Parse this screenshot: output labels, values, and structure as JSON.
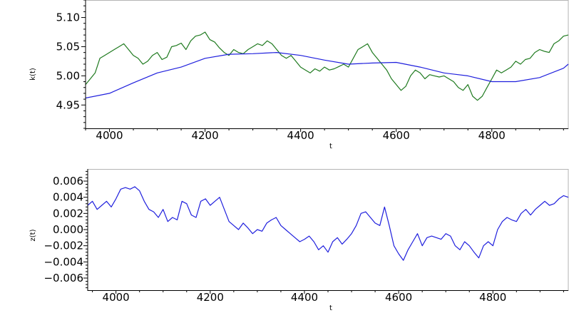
{
  "chart_data": [
    {
      "type": "line",
      "xlabel": "t",
      "ylabel": "k(t)",
      "xlim": [
        3950,
        4960
      ],
      "ylim": [
        4.91,
        5.13
      ],
      "xticks": [
        4000,
        4200,
        4400,
        4600,
        4800
      ],
      "xtick_labels": [
        "4000",
        "4200",
        "4400",
        "4600",
        "4800"
      ],
      "yticks": [
        4.95,
        5.0,
        5.05,
        5.1
      ],
      "ytick_labels": [
        "4.95",
        "5.00",
        "5.05",
        "5.10"
      ],
      "grid": false,
      "series": [
        {
          "color": "#1f7a1f",
          "x": [
            3950,
            3960,
            3970,
            3980,
            3990,
            4000,
            4010,
            4020,
            4030,
            4040,
            4050,
            4060,
            4070,
            4080,
            4090,
            4100,
            4110,
            4120,
            4130,
            4140,
            4150,
            4160,
            4170,
            4180,
            4190,
            4200,
            4210,
            4220,
            4230,
            4240,
            4250,
            4260,
            4270,
            4280,
            4290,
            4300,
            4310,
            4320,
            4330,
            4340,
            4350,
            4360,
            4370,
            4380,
            4390,
            4400,
            4410,
            4420,
            4430,
            4440,
            4450,
            4460,
            4470,
            4480,
            4490,
            4500,
            4510,
            4520,
            4530,
            4540,
            4550,
            4560,
            4570,
            4580,
            4590,
            4600,
            4610,
            4620,
            4630,
            4640,
            4650,
            4660,
            4670,
            4680,
            4690,
            4700,
            4710,
            4720,
            4730,
            4740,
            4750,
            4760,
            4770,
            4780,
            4790,
            4800,
            4810,
            4820,
            4830,
            4840,
            4850,
            4860,
            4870,
            4880,
            4890,
            4900,
            4910,
            4920,
            4930,
            4940,
            4950,
            4960
          ],
          "y": [
            4.985,
            4.995,
            5.005,
            5.03,
            5.035,
            5.04,
            5.045,
            5.05,
            5.055,
            5.045,
            5.035,
            5.03,
            5.02,
            5.025,
            5.035,
            5.04,
            5.028,
            5.032,
            5.05,
            5.052,
            5.056,
            5.045,
            5.06,
            5.068,
            5.07,
            5.075,
            5.062,
            5.058,
            5.048,
            5.04,
            5.035,
            5.045,
            5.04,
            5.038,
            5.045,
            5.05,
            5.055,
            5.052,
            5.06,
            5.055,
            5.045,
            5.035,
            5.03,
            5.035,
            5.025,
            5.015,
            5.01,
            5.005,
            5.012,
            5.008,
            5.015,
            5.01,
            5.012,
            5.016,
            5.02,
            5.015,
            5.03,
            5.045,
            5.05,
            5.055,
            5.04,
            5.03,
            5.02,
            5.01,
            4.995,
            4.985,
            4.975,
            4.982,
            5.0,
            5.01,
            5.005,
            4.995,
            5.002,
            5.0,
            4.998,
            5.0,
            4.995,
            4.99,
            4.98,
            4.975,
            4.985,
            4.965,
            4.958,
            4.965,
            4.98,
            4.995,
            5.01,
            5.005,
            5.01,
            5.015,
            5.025,
            5.02,
            5.028,
            5.03,
            5.04,
            5.045,
            5.042,
            5.04,
            5.055,
            5.06,
            5.068,
            5.07
          ]
        },
        {
          "color": "#1f1fdd",
          "x": [
            3950,
            4000,
            4050,
            4100,
            4150,
            4200,
            4250,
            4300,
            4350,
            4400,
            4450,
            4500,
            4550,
            4600,
            4650,
            4700,
            4750,
            4800,
            4850,
            4900,
            4950,
            4960
          ],
          "y": [
            4.962,
            4.97,
            4.988,
            5.005,
            5.015,
            5.03,
            5.037,
            5.038,
            5.04,
            5.035,
            5.027,
            5.02,
            5.022,
            5.023,
            5.015,
            5.005,
            5.0,
            4.99,
            4.99,
            4.997,
            5.013,
            5.02
          ]
        }
      ]
    },
    {
      "type": "line",
      "xlabel": "t",
      "ylabel": "z(t)",
      "xlim": [
        3940,
        4960
      ],
      "ylim": [
        -0.0075,
        0.0075
      ],
      "xticks": [
        4000,
        4200,
        4400,
        4600,
        4800
      ],
      "xtick_labels": [
        "4000",
        "4200",
        "4400",
        "4600",
        "4800"
      ],
      "yticks": [
        -0.006,
        -0.004,
        -0.002,
        0.0,
        0.002,
        0.004,
        0.006
      ],
      "ytick_labels": [
        "−0.006",
        "−0.004",
        "−0.002",
        "0.000",
        "0.002",
        "0.004",
        "0.006"
      ],
      "grid": false,
      "series": [
        {
          "color": "#1f1fdd",
          "x": [
            3940,
            3950,
            3960,
            3970,
            3980,
            3990,
            4000,
            4010,
            4020,
            4030,
            4040,
            4050,
            4060,
            4070,
            4080,
            4090,
            4100,
            4110,
            4120,
            4130,
            4140,
            4150,
            4160,
            4170,
            4180,
            4190,
            4200,
            4210,
            4220,
            4230,
            4240,
            4250,
            4260,
            4270,
            4280,
            4290,
            4300,
            4310,
            4320,
            4330,
            4340,
            4350,
            4360,
            4370,
            4380,
            4390,
            4400,
            4410,
            4420,
            4430,
            4440,
            4450,
            4460,
            4470,
            4480,
            4490,
            4500,
            4510,
            4520,
            4530,
            4540,
            4550,
            4560,
            4570,
            4580,
            4590,
            4600,
            4610,
            4620,
            4630,
            4640,
            4650,
            4660,
            4670,
            4680,
            4690,
            4700,
            4710,
            4720,
            4730,
            4740,
            4750,
            4760,
            4770,
            4780,
            4790,
            4800,
            4810,
            4820,
            4830,
            4840,
            4850,
            4860,
            4870,
            4880,
            4890,
            4900,
            4910,
            4920,
            4930,
            4940,
            4950,
            4960
          ],
          "y": [
            0.003,
            0.0035,
            0.0025,
            0.003,
            0.0035,
            0.0028,
            0.0038,
            0.005,
            0.0052,
            0.005,
            0.0053,
            0.0048,
            0.0035,
            0.0025,
            0.0022,
            0.0015,
            0.0025,
            0.001,
            0.0015,
            0.0012,
            0.0035,
            0.0032,
            0.0018,
            0.0015,
            0.0035,
            0.0038,
            0.003,
            0.0035,
            0.004,
            0.0025,
            0.001,
            0.0005,
            0.0,
            0.0008,
            0.0002,
            -0.0005,
            0.0,
            -0.0002,
            0.0008,
            0.0012,
            0.0015,
            0.0005,
            0.0,
            -0.0005,
            -0.001,
            -0.0015,
            -0.0012,
            -0.0008,
            -0.0015,
            -0.0025,
            -0.002,
            -0.0028,
            -0.0015,
            -0.001,
            -0.0018,
            -0.0012,
            -0.0005,
            0.0005,
            0.002,
            0.0022,
            0.0015,
            0.0008,
            0.0005,
            0.0028,
            0.0005,
            -0.002,
            -0.003,
            -0.0038,
            -0.0025,
            -0.0015,
            -0.0005,
            -0.002,
            -0.001,
            -0.0008,
            -0.001,
            -0.0012,
            -0.0005,
            -0.0008,
            -0.002,
            -0.0025,
            -0.0015,
            -0.002,
            -0.0028,
            -0.0035,
            -0.002,
            -0.0015,
            -0.002,
            0.0,
            0.001,
            0.0015,
            0.0012,
            0.001,
            0.002,
            0.0025,
            0.0018,
            0.0025,
            0.003,
            0.0035,
            0.003,
            0.0032,
            0.0038,
            0.0042,
            0.004
          ]
        }
      ]
    }
  ]
}
